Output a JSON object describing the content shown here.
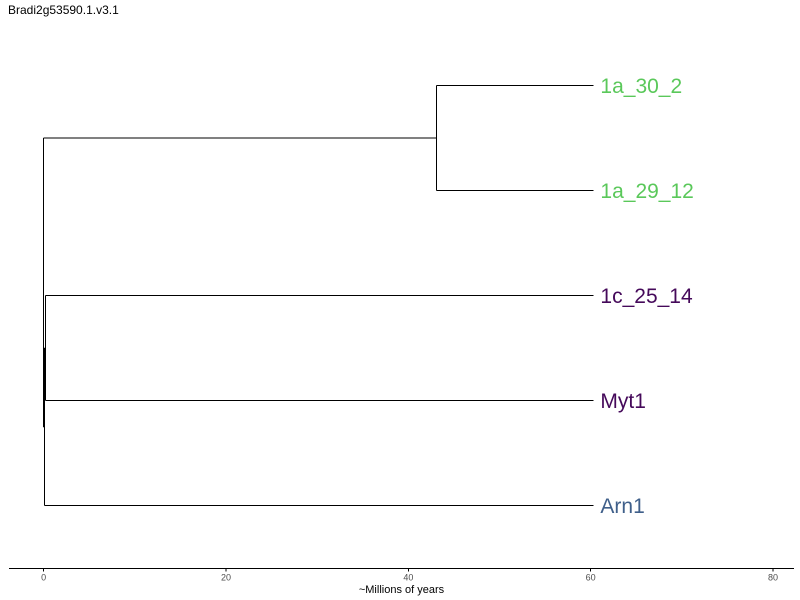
{
  "title": "Bradi2g53590.1.v3.1",
  "axis": {
    "label": "~Millions of years",
    "ticks": [
      0,
      20,
      40,
      60,
      80
    ],
    "range": [
      -3.8,
      82.3
    ]
  },
  "tree": {
    "root_age": 0,
    "tips": [
      {
        "name": "1a_30_2",
        "color": "#5ac85a",
        "age": 60.3
      },
      {
        "name": "1a_29_12",
        "color": "#5ac85a",
        "age": 60.3
      },
      {
        "name": "1c_25_14",
        "color": "#45095a",
        "age": 60.3
      },
      {
        "name": "Myt1",
        "color": "#45095a",
        "age": 60.3
      },
      {
        "name": "Arn1",
        "color": "#3f5f8a",
        "age": 60.3
      }
    ],
    "nodes": [
      {
        "id": "A",
        "age": 43.1,
        "children": [
          "1a_30_2",
          "1a_29_12"
        ]
      },
      {
        "id": "B",
        "age": 0.2,
        "children": [
          "1c_25_14",
          "Myt1"
        ]
      },
      {
        "id": "C",
        "age": 0.1,
        "children": [
          "B",
          "Arn1"
        ]
      },
      {
        "id": "root",
        "age": 0,
        "children": [
          "A",
          "C"
        ]
      }
    ]
  }
}
